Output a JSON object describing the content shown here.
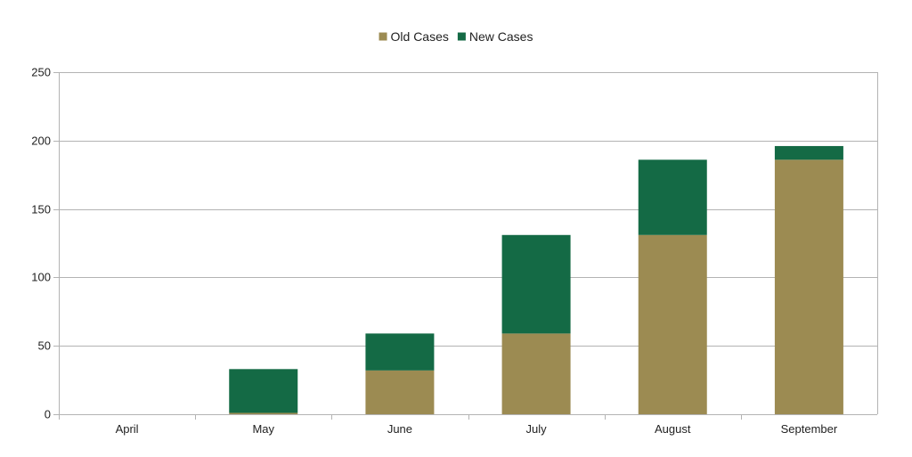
{
  "chart_data": {
    "type": "bar",
    "stacked": true,
    "categories": [
      "April",
      "May",
      "June",
      "July",
      "August",
      "September"
    ],
    "series": [
      {
        "name": "Old Cases",
        "values": [
          0,
          1,
          32,
          59,
          131,
          186
        ],
        "color": "#9c8b52"
      },
      {
        "name": "New Cases",
        "values": [
          0,
          32,
          27,
          72,
          55,
          10
        ],
        "color": "#146a45"
      }
    ],
    "title": "",
    "xlabel": "",
    "ylabel": "",
    "ylim": [
      0,
      250
    ],
    "yticks": [
      0,
      50,
      100,
      150,
      200,
      250
    ],
    "grid": true,
    "legend_position": "top-center"
  }
}
